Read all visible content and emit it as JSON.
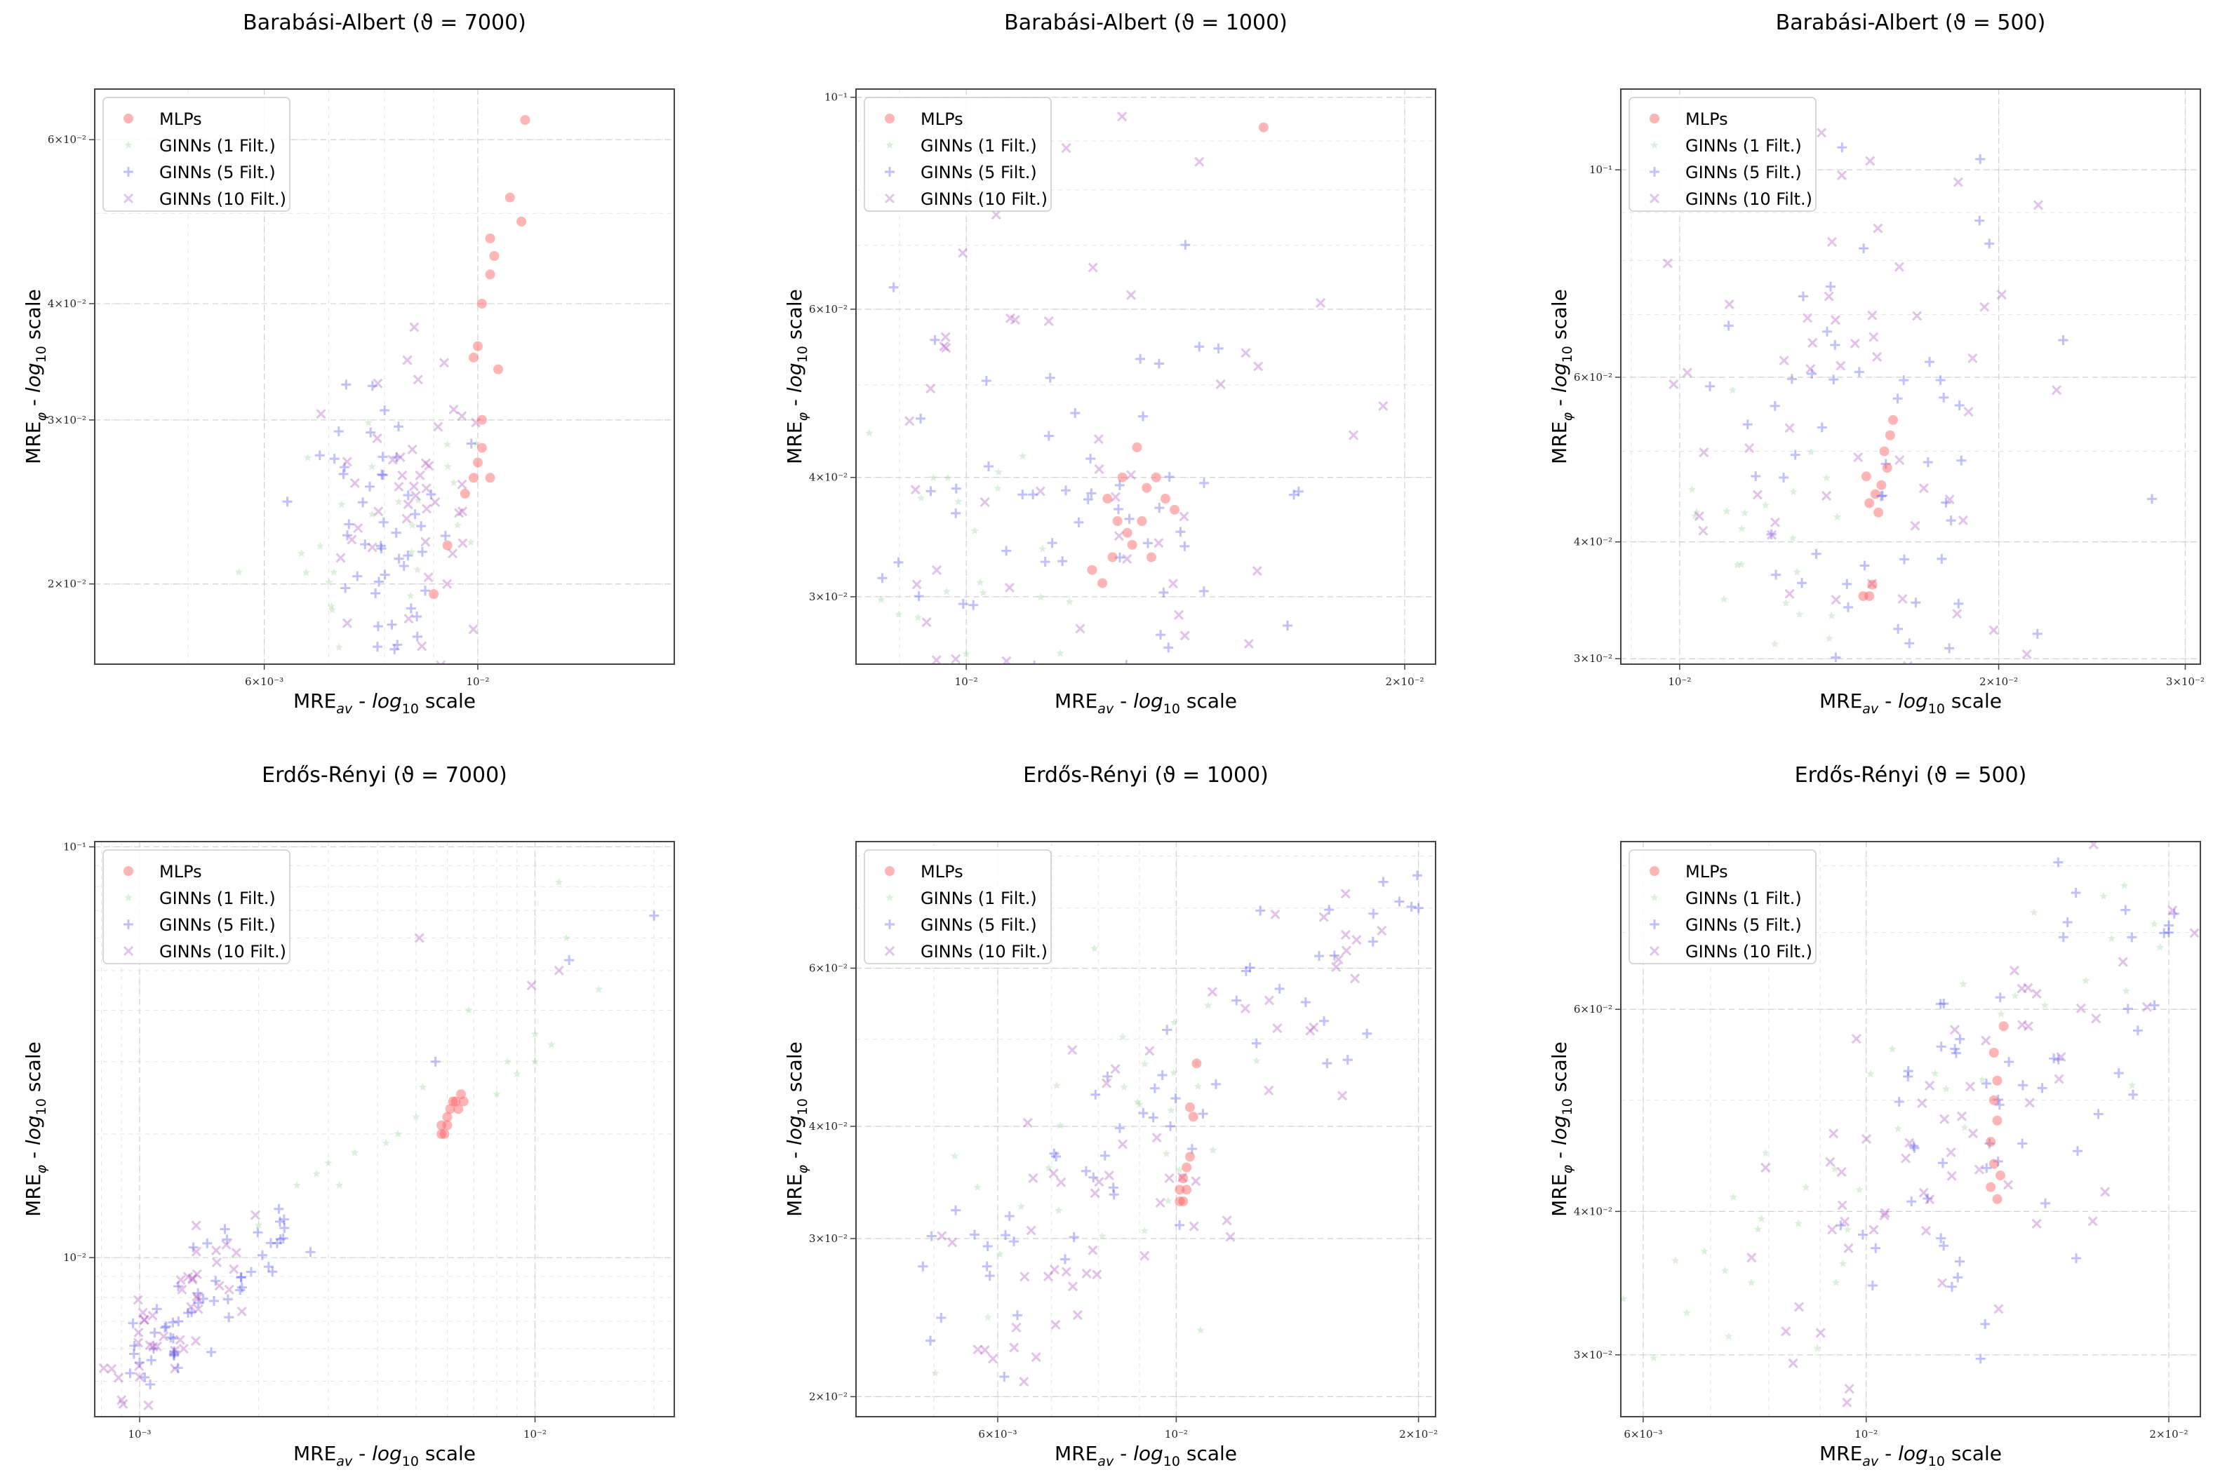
{
  "figure": {
    "xlabel": "MRE_av - log10 scale",
    "ylabel": "MRE_φ - log10 scale"
  },
  "legend": {
    "entries": [
      "MLPs",
      "GINNs (1 Filt.)",
      "GINNs (5 Filt.)",
      "GINNs (10 Filt.)"
    ]
  },
  "colors": {
    "mlp": "#ff5a5a",
    "ginn1": "#8cc98c",
    "ginn5": "#4a4af0",
    "ginn10": "#b050c0"
  },
  "chart_data": [
    {
      "type": "scatter",
      "title": "Barabási-Albert (ϑ = 7000)",
      "xlabel": "MRE_av - log10 scale",
      "ylabel": "MRE_φ - log10 scale",
      "xscale": "log",
      "yscale": "log",
      "xlim": [
        0.004,
        0.016
      ],
      "ylim": [
        0.0164,
        0.068
      ],
      "xticks": [
        {
          "v": 0.006,
          "l": "6×10⁻³"
        },
        {
          "v": 0.01,
          "l": "10⁻²"
        }
      ],
      "yticks": [
        {
          "v": 0.02,
          "l": "2×10⁻²"
        },
        {
          "v": 0.03,
          "l": "3×10⁻²"
        },
        {
          "v": 0.04,
          "l": "4×10⁻²"
        },
        {
          "v": 0.06,
          "l": "6×10⁻²"
        }
      ],
      "legend_loc": "top-left",
      "clusters": {
        "mlp": [
          [
            0.0112,
            0.063
          ],
          [
            0.0108,
            0.052
          ],
          [
            0.0111,
            0.049
          ],
          [
            0.0103,
            0.047
          ],
          [
            0.0104,
            0.045
          ],
          [
            0.0103,
            0.043
          ],
          [
            0.0101,
            0.04
          ],
          [
            0.01,
            0.036
          ],
          [
            0.0099,
            0.035
          ],
          [
            0.0105,
            0.034
          ],
          [
            0.0101,
            0.03
          ],
          [
            0.01,
            0.027
          ],
          [
            0.0101,
            0.028
          ],
          [
            0.0103,
            0.026
          ],
          [
            0.0097,
            0.025
          ],
          [
            0.0099,
            0.026
          ],
          [
            0.0093,
            0.022
          ],
          [
            0.009,
            0.0195
          ]
        ],
        "ginn1": {
          "c": [
            0.008,
            0.0235
          ],
          "sx": 0.06,
          "sy": 0.08,
          "n": 26,
          "seed": 11
        },
        "ginn5": {
          "c": [
            0.0081,
            0.0228
          ],
          "sx": 0.04,
          "sy": 0.08,
          "n": 50,
          "seed": 12
        },
        "ginn10": {
          "c": [
            0.0085,
            0.0245
          ],
          "sx": 0.04,
          "sy": 0.09,
          "n": 48,
          "seed": 13
        }
      }
    },
    {
      "type": "scatter",
      "title": "Barabási-Albert (ϑ = 1000)",
      "xlabel": "MRE_av - log10 scale",
      "ylabel": "MRE_φ - log10 scale",
      "xscale": "log",
      "yscale": "log",
      "xlim": [
        0.0084,
        0.021
      ],
      "ylim": [
        0.0255,
        0.102
      ],
      "xticks": [
        {
          "v": 0.01,
          "l": "10⁻²"
        },
        {
          "v": 0.02,
          "l": "2×10⁻²"
        }
      ],
      "yticks": [
        {
          "v": 0.03,
          "l": "3×10⁻²"
        },
        {
          "v": 0.04,
          "l": "4×10⁻²"
        },
        {
          "v": 0.06,
          "l": "6×10⁻²"
        },
        {
          "v": 0.1,
          "l": "10⁻¹"
        }
      ],
      "legend_loc": "top-left",
      "clusters": {
        "mlp": [
          [
            0.016,
            0.093
          ],
          [
            0.0131,
            0.043
          ],
          [
            0.0128,
            0.04
          ],
          [
            0.0133,
            0.039
          ],
          [
            0.0127,
            0.036
          ],
          [
            0.013,
            0.034
          ],
          [
            0.0126,
            0.033
          ],
          [
            0.0134,
            0.033
          ],
          [
            0.0124,
            0.031
          ],
          [
            0.0139,
            0.037
          ],
          [
            0.0137,
            0.038
          ],
          [
            0.0129,
            0.035
          ],
          [
            0.0132,
            0.036
          ],
          [
            0.0122,
            0.032
          ],
          [
            0.0135,
            0.04
          ],
          [
            0.0125,
            0.038
          ]
        ],
        "ginn1": {
          "c": [
            0.01,
            0.031
          ],
          "sx": 0.05,
          "sy": 0.09,
          "n": 24,
          "seed": 21
        },
        "ginn5": {
          "c": [
            0.0118,
            0.037
          ],
          "sx": 0.07,
          "sy": 0.11,
          "n": 60,
          "seed": 22
        },
        "ginn10": {
          "c": [
            0.012,
            0.038
          ],
          "sx": 0.09,
          "sy": 0.16,
          "n": 55,
          "seed": 23
        }
      }
    },
    {
      "type": "scatter",
      "title": "Barabási-Albert (ϑ = 500)",
      "xlabel": "MRE_av - log10 scale",
      "ylabel": "MRE_φ - log10 scale",
      "xscale": "log",
      "yscale": "log",
      "xlim": [
        0.0088,
        0.031
      ],
      "ylim": [
        0.0296,
        0.122
      ],
      "xticks": [
        {
          "v": 0.01,
          "l": "10⁻²"
        },
        {
          "v": 0.02,
          "l": "2×10⁻²"
        },
        {
          "v": 0.03,
          "l": "3×10⁻²"
        }
      ],
      "yticks": [
        {
          "v": 0.03,
          "l": "3×10⁻²"
        },
        {
          "v": 0.04,
          "l": "4×10⁻²"
        },
        {
          "v": 0.06,
          "l": "6×10⁻²"
        },
        {
          "v": 0.1,
          "l": "10⁻¹"
        }
      ],
      "legend_loc": "top-left",
      "clusters": {
        "mlp": [
          [
            0.0158,
            0.052
          ],
          [
            0.0156,
            0.05
          ],
          [
            0.0159,
            0.054
          ],
          [
            0.0157,
            0.048
          ],
          [
            0.0155,
            0.046
          ],
          [
            0.0153,
            0.045
          ],
          [
            0.0151,
            0.044
          ],
          [
            0.0154,
            0.043
          ],
          [
            0.015,
            0.047
          ],
          [
            0.0152,
            0.036
          ],
          [
            0.0149,
            0.035
          ],
          [
            0.0151,
            0.035
          ]
        ],
        "ginn1": {
          "c": [
            0.0117,
            0.039
          ],
          "sx": 0.05,
          "sy": 0.08,
          "n": 24,
          "seed": 31
        },
        "ginn5": {
          "c": [
            0.015,
            0.05
          ],
          "sx": 0.1,
          "sy": 0.16,
          "n": 60,
          "seed": 32
        },
        "ginn10": {
          "c": [
            0.0145,
            0.048
          ],
          "sx": 0.09,
          "sy": 0.18,
          "n": 60,
          "seed": 33
        }
      }
    },
    {
      "type": "scatter",
      "title": "Erdős-Rényi (ϑ = 7000)",
      "xlabel": "MRE_av - log10 scale",
      "ylabel": "MRE_φ - log10 scale",
      "xscale": "log",
      "yscale": "log",
      "xlim": [
        0.00077,
        0.0225
      ],
      "ylim": [
        0.0041,
        0.103
      ],
      "xticks": [
        {
          "v": 0.001,
          "l": "10⁻³"
        },
        {
          "v": 0.01,
          "l": "10⁻²"
        }
      ],
      "yticks": [
        {
          "v": 0.01,
          "l": "10⁻²"
        },
        {
          "v": 0.1,
          "l": "10⁻¹"
        }
      ],
      "legend_loc": "top-left",
      "clusters": {
        "mlp": [
          [
            0.0058,
            0.021
          ],
          [
            0.006,
            0.022
          ],
          [
            0.0063,
            0.024
          ],
          [
            0.0061,
            0.023
          ],
          [
            0.0065,
            0.025
          ],
          [
            0.0059,
            0.02
          ],
          [
            0.0062,
            0.024
          ],
          [
            0.0064,
            0.023
          ],
          [
            0.006,
            0.021
          ],
          [
            0.0058,
            0.02
          ],
          [
            0.0066,
            0.024
          ]
        ],
        "ginn1": [
          [
            0.002,
            0.012
          ],
          [
            0.0025,
            0.015
          ],
          [
            0.003,
            0.017
          ],
          [
            0.0035,
            0.018
          ],
          [
            0.0045,
            0.02
          ],
          [
            0.005,
            0.022
          ],
          [
            0.008,
            0.025
          ],
          [
            0.009,
            0.028
          ],
          [
            0.01,
            0.03
          ],
          [
            0.011,
            0.033
          ],
          [
            0.012,
            0.06
          ],
          [
            0.0115,
            0.082
          ],
          [
            0.0145,
            0.045
          ],
          [
            0.01,
            0.035
          ],
          [
            0.0085,
            0.03
          ],
          [
            0.0028,
            0.016
          ],
          [
            0.0032,
            0.015
          ],
          [
            0.0042,
            0.019
          ],
          [
            0.0052,
            0.026
          ],
          [
            0.0068,
            0.04
          ]
        ],
        "ginn5": {
          "diag": true,
          "x0": 0.0009,
          "x1": 0.0026,
          "y0": 0.0053,
          "y1": 0.0132,
          "spread": 0.06,
          "n": 55,
          "seed": 42,
          "extra": [
            [
              0.02,
              0.068
            ],
            [
              0.0122,
              0.053
            ],
            [
              0.0056,
              0.03
            ]
          ]
        },
        "ginn10": {
          "diag": true,
          "x0": 0.00085,
          "x1": 0.0018,
          "y0": 0.0047,
          "y1": 0.01,
          "spread": 0.07,
          "n": 45,
          "seed": 43,
          "extra": [
            [
              0.0051,
              0.06
            ],
            [
              0.0098,
              0.046
            ],
            [
              0.0115,
              0.05
            ],
            [
              0.0009,
              0.0045
            ]
          ]
        }
      }
    },
    {
      "type": "scatter",
      "title": "Erdős-Rényi (ϑ = 1000)",
      "xlabel": "MRE_av - log10 scale",
      "ylabel": "MRE_φ - log10 scale",
      "xscale": "log",
      "yscale": "log",
      "xlim": [
        0.004,
        0.021
      ],
      "ylim": [
        0.019,
        0.083
      ],
      "xticks": [
        {
          "v": 0.006,
          "l": "6×10⁻³"
        },
        {
          "v": 0.01,
          "l": "10⁻²"
        },
        {
          "v": 0.02,
          "l": "2×10⁻²"
        }
      ],
      "yticks": [
        {
          "v": 0.02,
          "l": "2×10⁻²"
        },
        {
          "v": 0.03,
          "l": "3×10⁻²"
        },
        {
          "v": 0.04,
          "l": "4×10⁻²"
        },
        {
          "v": 0.06,
          "l": "6×10⁻²"
        }
      ],
      "legend_loc": "top-left",
      "clusters": {
        "mlp": [
          [
            0.0106,
            0.047
          ],
          [
            0.0104,
            0.042
          ],
          [
            0.0105,
            0.041
          ],
          [
            0.0103,
            0.036
          ],
          [
            0.0102,
            0.035
          ],
          [
            0.0101,
            0.034
          ],
          [
            0.0103,
            0.034
          ],
          [
            0.0102,
            0.033
          ],
          [
            0.0101,
            0.033
          ],
          [
            0.0104,
            0.037
          ]
        ],
        "ginn1": {
          "diag": true,
          "x0": 0.0045,
          "x1": 0.0125,
          "y0": 0.024,
          "y1": 0.045,
          "spread": 0.08,
          "n": 30,
          "seed": 51
        },
        "ginn5": {
          "diag": true,
          "x0": 0.005,
          "x1": 0.0195,
          "y0": 0.024,
          "y1": 0.072,
          "spread": 0.07,
          "n": 60,
          "seed": 52,
          "extra": [
            [
              0.02,
              0.07
            ]
          ]
        },
        "ginn10": {
          "diag": true,
          "x0": 0.0048,
          "x1": 0.019,
          "y0": 0.022,
          "y1": 0.064,
          "spread": 0.09,
          "n": 60,
          "seed": 53
        }
      }
    },
    {
      "type": "scatter",
      "title": "Erdős-Rényi (ϑ = 500)",
      "xlabel": "MRE_av - log10 scale",
      "ylabel": "MRE_φ - log10 scale",
      "xscale": "log",
      "yscale": "log",
      "xlim": [
        0.0057,
        0.0215
      ],
      "ylim": [
        0.0265,
        0.084
      ],
      "xticks": [
        {
          "v": 0.006,
          "l": "6×10⁻³"
        },
        {
          "v": 0.01,
          "l": "10⁻²"
        },
        {
          "v": 0.02,
          "l": "2×10⁻²"
        }
      ],
      "yticks": [
        {
          "v": 0.03,
          "l": "3×10⁻²"
        },
        {
          "v": 0.04,
          "l": "4×10⁻²"
        },
        {
          "v": 0.06,
          "l": "6×10⁻²"
        }
      ],
      "legend_loc": "top-left",
      "clusters": {
        "mlp": [
          [
            0.0137,
            0.058
          ],
          [
            0.0134,
            0.055
          ],
          [
            0.0135,
            0.052
          ],
          [
            0.0134,
            0.05
          ],
          [
            0.0135,
            0.048
          ],
          [
            0.0133,
            0.046
          ],
          [
            0.0134,
            0.044
          ],
          [
            0.0136,
            0.043
          ],
          [
            0.0133,
            0.042
          ],
          [
            0.0135,
            0.041
          ]
        ],
        "ginn1": {
          "diag": true,
          "x0": 0.0058,
          "x1": 0.0205,
          "y0": 0.028,
          "y1": 0.076,
          "spread": 0.07,
          "n": 40,
          "seed": 61
        },
        "ginn5": {
          "diag": true,
          "x0": 0.01,
          "x1": 0.02,
          "y0": 0.038,
          "y1": 0.072,
          "spread": 0.1,
          "n": 60,
          "seed": 62,
          "extra": [
            [
              0.02,
              0.071
            ],
            [
              0.02,
              0.07
            ]
          ]
        },
        "ginn10": {
          "diag": true,
          "x0": 0.008,
          "x1": 0.0195,
          "y0": 0.032,
          "y1": 0.066,
          "spread": 0.09,
          "n": 60,
          "seed": 63
        }
      }
    }
  ]
}
